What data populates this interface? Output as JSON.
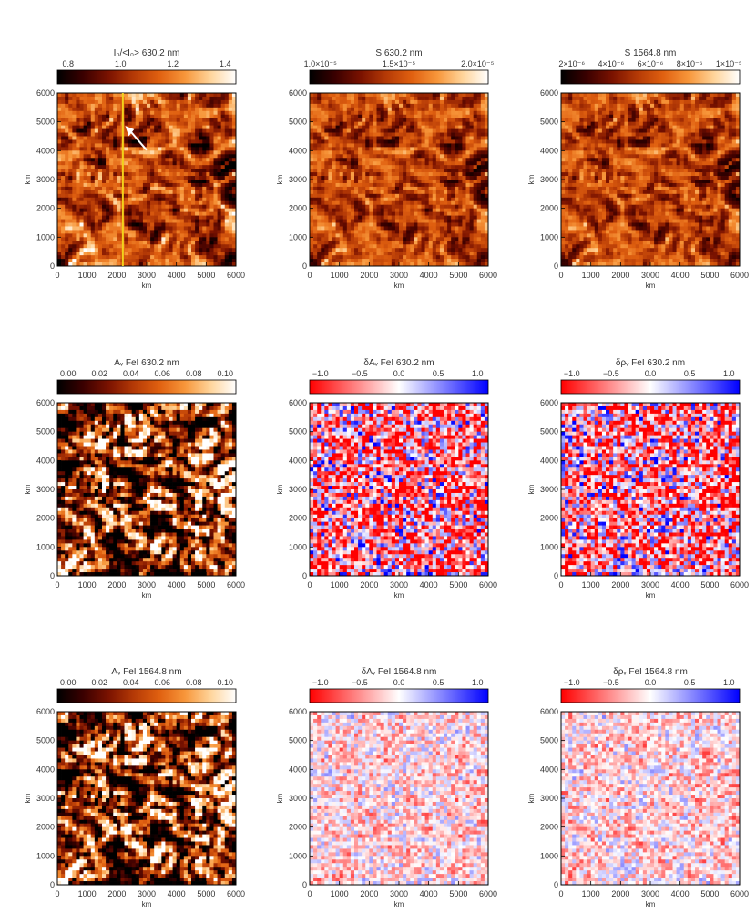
{
  "figure": {
    "colormaps": {
      "heat": [
        "#000000",
        "#3a0000",
        "#7a1200",
        "#b53a06",
        "#e06010",
        "#f7963a",
        "#ffd49a",
        "#ffffff"
      ],
      "diverging": [
        "#ff0000",
        "#ffffff",
        "#0000ff"
      ]
    },
    "panels": [
      {
        "title": "I₀/<I₀> 630.2 nm",
        "ylabel": "km",
        "xlabel": "km",
        "cmap": "heat",
        "cbar_ticks": [
          "0.8",
          "1.0",
          "1.2",
          "1.4"
        ],
        "annotation": "yellow vertical line at x ≈ 2200 km; white arrow"
      },
      {
        "title": "S 630.2 nm",
        "ylabel": "km",
        "xlabel": "km",
        "cmap": "heat",
        "cbar_ticks": [
          "1.0×10⁻⁵",
          "1.5×10⁻⁵",
          "2.0×10⁻⁵"
        ]
      },
      {
        "title": "S 1564.8 nm",
        "ylabel": "km",
        "xlabel": "km",
        "cmap": "heat",
        "cbar_ticks": [
          "2×10⁻⁶",
          "4×10⁻⁶",
          "6×10⁻⁶",
          "8×10⁻⁶",
          "1×10⁻⁵"
        ]
      },
      {
        "title": "Aᵥ FeI 630.2 nm",
        "ylabel": "km",
        "xlabel": "km",
        "cmap": "heat",
        "cbar_ticks": [
          "0.00",
          "0.02",
          "0.04",
          "0.06",
          "0.08",
          "0.10"
        ]
      },
      {
        "title": "δAᵥ FeI 630.2 nm",
        "ylabel": "km",
        "xlabel": "km",
        "cmap": "diverging",
        "cbar_ticks": [
          "−1.0",
          "−0.5",
          "0.0",
          "0.5",
          "1.0"
        ]
      },
      {
        "title": "δρᵥ FeI 630.2 nm",
        "ylabel": "km",
        "xlabel": "km",
        "cmap": "diverging",
        "cbar_ticks": [
          "−1.0",
          "−0.5",
          "0.0",
          "0.5",
          "1.0"
        ]
      },
      {
        "title": "Aᵥ FeI 1564.8 nm",
        "ylabel": "km",
        "xlabel": "km",
        "cmap": "heat",
        "cbar_ticks": [
          "0.00",
          "0.02",
          "0.04",
          "0.06",
          "0.08",
          "0.10"
        ]
      },
      {
        "title": "δAᵥ FeI 1564.8 nm",
        "ylabel": "km",
        "xlabel": "km",
        "cmap": "diverging",
        "cbar_ticks": [
          "−1.0",
          "−0.5",
          "0.0",
          "0.5",
          "1.0"
        ]
      },
      {
        "title": "δρᵥ FeI 1564.8 nm",
        "ylabel": "km",
        "xlabel": "km",
        "cmap": "diverging",
        "cbar_ticks": [
          "−1.0",
          "−0.5",
          "0.0",
          "0.5",
          "1.0"
        ]
      }
    ]
  },
  "chart_data": [
    {
      "type": "heatmap",
      "title": "I₀/<I₀> 630.2 nm",
      "colorbar_range": [
        0.7,
        1.45
      ],
      "xlabel": "km",
      "ylabel": "km",
      "xlim": [
        0,
        6000
      ],
      "ylim": [
        0,
        6000
      ],
      "x_ticks": [
        0,
        1000,
        2000,
        3000,
        4000,
        5000,
        6000
      ],
      "y_ticks": [
        0,
        1000,
        2000,
        3000,
        4000,
        5000,
        6000
      ],
      "marker_line_x_km": 2200
    },
    {
      "type": "heatmap",
      "title": "S 630.2 nm",
      "colorbar_range": [
        7.5e-06,
        2.35e-05
      ],
      "xlabel": "km",
      "ylabel": "km",
      "xlim": [
        0,
        6000
      ],
      "ylim": [
        0,
        6000
      ],
      "x_ticks": [
        0,
        1000,
        2000,
        3000,
        4000,
        5000,
        6000
      ],
      "y_ticks": [
        0,
        1000,
        2000,
        3000,
        4000,
        5000,
        6000
      ]
    },
    {
      "type": "heatmap",
      "title": "S 1564.8 nm",
      "colorbar_range": [
        1e-06,
        1.05e-05
      ],
      "xlabel": "km",
      "ylabel": "km",
      "xlim": [
        0,
        6000
      ],
      "ylim": [
        0,
        6000
      ],
      "x_ticks": [
        0,
        1000,
        2000,
        3000,
        4000,
        5000,
        6000
      ],
      "y_ticks": [
        0,
        1000,
        2000,
        3000,
        4000,
        5000,
        6000
      ]
    },
    {
      "type": "heatmap",
      "title": "Aᵥ FeI 630.2 nm",
      "colorbar_range": [
        0.0,
        0.1
      ],
      "xlabel": "km",
      "ylabel": "km",
      "xlim": [
        0,
        6000
      ],
      "ylim": [
        0,
        6000
      ],
      "x_ticks": [
        0,
        1000,
        2000,
        3000,
        4000,
        5000,
        6000
      ],
      "y_ticks": [
        0,
        1000,
        2000,
        3000,
        4000,
        5000,
        6000
      ]
    },
    {
      "type": "heatmap",
      "title": "δAᵥ FeI 630.2 nm",
      "colorbar_range": [
        -1.0,
        1.0
      ],
      "xlabel": "km",
      "ylabel": "km",
      "xlim": [
        0,
        6000
      ],
      "ylim": [
        0,
        6000
      ],
      "x_ticks": [
        0,
        1000,
        2000,
        3000,
        4000,
        5000,
        6000
      ],
      "y_ticks": [
        0,
        1000,
        2000,
        3000,
        4000,
        5000,
        6000
      ]
    },
    {
      "type": "heatmap",
      "title": "δρᵥ FeI 630.2 nm",
      "colorbar_range": [
        -1.0,
        1.0
      ],
      "xlabel": "km",
      "ylabel": "km",
      "xlim": [
        0,
        6000
      ],
      "ylim": [
        0,
        6000
      ],
      "x_ticks": [
        0,
        1000,
        2000,
        3000,
        4000,
        5000,
        6000
      ],
      "y_ticks": [
        0,
        1000,
        2000,
        3000,
        4000,
        5000,
        6000
      ]
    },
    {
      "type": "heatmap",
      "title": "Aᵥ FeI 1564.8 nm",
      "colorbar_range": [
        0.0,
        0.1
      ],
      "xlabel": "km",
      "ylabel": "km",
      "xlim": [
        0,
        6000
      ],
      "ylim": [
        0,
        6000
      ],
      "x_ticks": [
        0,
        1000,
        2000,
        3000,
        4000,
        5000,
        6000
      ],
      "y_ticks": [
        0,
        1000,
        2000,
        3000,
        4000,
        5000,
        6000
      ]
    },
    {
      "type": "heatmap",
      "title": "δAᵥ FeI 1564.8 nm",
      "colorbar_range": [
        -1.0,
        1.0
      ],
      "xlabel": "km",
      "ylabel": "km",
      "xlim": [
        0,
        6000
      ],
      "ylim": [
        0,
        6000
      ],
      "x_ticks": [
        0,
        1000,
        2000,
        3000,
        4000,
        5000,
        6000
      ],
      "y_ticks": [
        0,
        1000,
        2000,
        3000,
        4000,
        5000,
        6000
      ]
    },
    {
      "type": "heatmap",
      "title": "δρᵥ FeI 1564.8 nm",
      "colorbar_range": [
        -1.0,
        1.0
      ],
      "xlabel": "km",
      "ylabel": "km",
      "xlim": [
        0,
        6000
      ],
      "ylim": [
        0,
        6000
      ],
      "x_ticks": [
        0,
        1000,
        2000,
        3000,
        4000,
        5000,
        6000
      ],
      "y_ticks": [
        0,
        1000,
        2000,
        3000,
        4000,
        5000,
        6000
      ]
    }
  ]
}
